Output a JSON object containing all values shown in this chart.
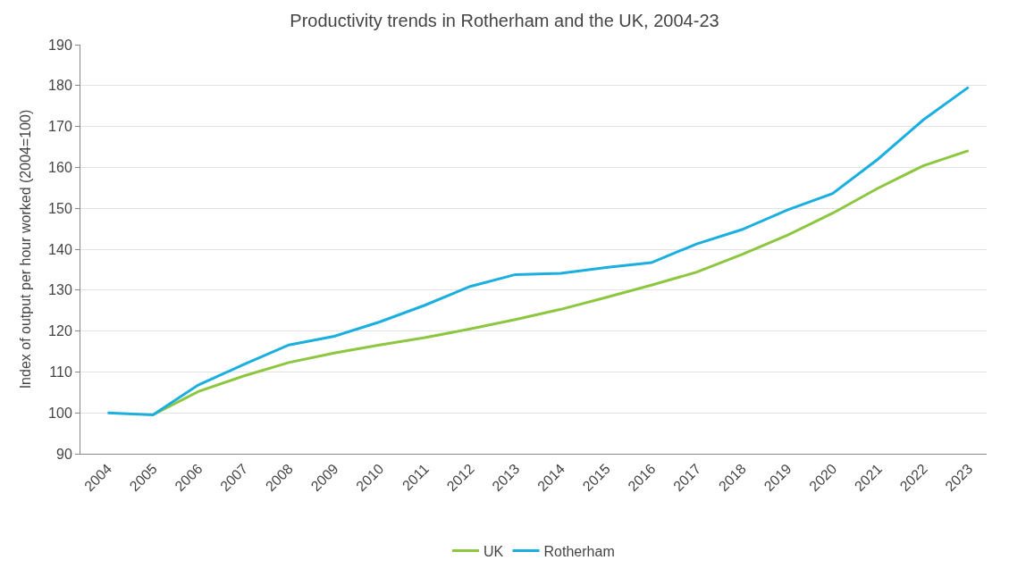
{
  "chart_data": {
    "type": "line",
    "title": "Productivity trends in Rotherham and the UK, 2004-23",
    "ylabel": "Index of output per hour worked (2004=100)",
    "categories": [
      "2004",
      "2005",
      "2006",
      "2007",
      "2008",
      "2009",
      "2010",
      "2011",
      "2012",
      "2013",
      "2014",
      "2015",
      "2016",
      "2017",
      "2018",
      "2019",
      "2020",
      "2021",
      "2022",
      "2023"
    ],
    "series": [
      {
        "name": "UK",
        "color": "#8dc63f",
        "values": [
          null,
          99.5,
          105.2,
          109,
          112.3,
          114.6,
          116.6,
          118.4,
          120.5,
          122.8,
          125.3,
          128.2,
          131.2,
          134.4,
          138.7,
          143.4,
          148.8,
          154.9,
          160.4,
          164.1
        ]
      },
      {
        "name": "Rotherham",
        "color": "#1bafe0",
        "values": [
          100,
          99.5,
          106.8,
          111.8,
          116.6,
          118.7,
          122.2,
          126.3,
          130.9,
          133.8,
          134.1,
          135.5,
          136.7,
          141.3,
          144.8,
          149.6,
          153.6,
          162,
          171.6,
          179.6
        ]
      }
    ],
    "ylim": [
      90,
      190
    ],
    "yticks": [
      90,
      100,
      110,
      120,
      130,
      140,
      150,
      160,
      170,
      180,
      190
    ],
    "grid": "y",
    "legend": "bottom",
    "marker": "none",
    "line_style": "solid"
  }
}
